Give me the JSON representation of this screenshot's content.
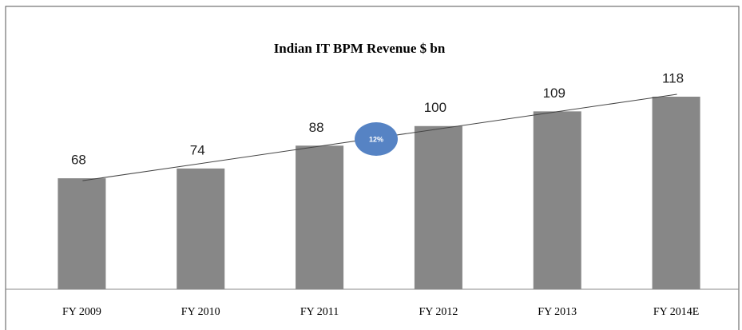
{
  "chart_data": {
    "type": "bar",
    "title": "Indian IT BPM Revenue $ bn",
    "categories": [
      "FY 2009",
      "FY 2010",
      "FY 2011",
      "FY 2012",
      "FY 2013",
      "FY 2014E"
    ],
    "values": [
      68,
      74,
      88,
      100,
      109,
      118
    ],
    "color": "#878787",
    "annotation": "12%",
    "annotation_color": "#5683c4"
  }
}
